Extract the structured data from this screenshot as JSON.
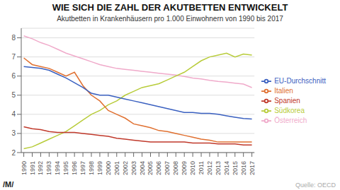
{
  "chart_data": {
    "type": "line",
    "title": "WIE SICH DIE ZAHL DER AKUTBETTEN ENTWICKELT",
    "subtitle": "Akutbetten in Krankenhäusern pro 1.000 Einwohnern von 1990 bis 2017",
    "annotations": [
      "Quelle: OECD",
      "/M/"
    ],
    "x": [
      1990,
      1991,
      1992,
      1993,
      1994,
      1995,
      1996,
      1997,
      1998,
      1999,
      2000,
      2001,
      2002,
      2003,
      2004,
      2005,
      2006,
      2007,
      2008,
      2009,
      2010,
      2011,
      2012,
      2013,
      2014,
      2015,
      2016,
      2017
    ],
    "series": [
      {
        "name": "Österreich",
        "color": "#f0aaca",
        "values": [
          8.1,
          7.95,
          7.75,
          7.6,
          7.4,
          7.2,
          7.05,
          6.9,
          6.75,
          6.6,
          6.5,
          6.4,
          6.35,
          6.3,
          6.25,
          6.2,
          6.15,
          6.1,
          6.05,
          5.98,
          5.9,
          5.85,
          5.78,
          5.72,
          5.68,
          5.63,
          5.58,
          5.4
        ]
      },
      {
        "name": "Südkorea",
        "color": "#b8cc3a",
        "values": [
          2.2,
          2.3,
          2.5,
          2.7,
          2.9,
          3.1,
          3.4,
          3.7,
          4.0,
          4.2,
          4.5,
          4.7,
          5.0,
          5.2,
          5.4,
          5.5,
          5.6,
          5.8,
          6.0,
          6.2,
          6.5,
          6.8,
          7.0,
          7.1,
          7.2,
          7.0,
          7.15,
          7.1
        ]
      },
      {
        "name": "Italien",
        "color": "#e07030",
        "values": [
          6.95,
          6.6,
          6.5,
          6.4,
          6.2,
          6.0,
          6.2,
          5.5,
          5.0,
          4.7,
          4.2,
          4.0,
          3.8,
          3.5,
          3.4,
          3.3,
          3.15,
          3.1,
          3.0,
          2.9,
          2.8,
          2.7,
          2.65,
          2.55,
          2.55,
          2.55,
          2.55,
          2.55
        ]
      },
      {
        "name": "Spanien",
        "color": "#c0392b",
        "values": [
          3.35,
          3.25,
          3.2,
          3.1,
          3.05,
          3.05,
          3.05,
          3.0,
          2.95,
          2.9,
          2.85,
          2.75,
          2.7,
          2.65,
          2.6,
          2.55,
          2.55,
          2.55,
          2.55,
          2.55,
          2.5,
          2.5,
          2.5,
          2.45,
          2.45,
          2.45,
          2.4,
          2.4
        ]
      },
      {
        "name": "EU-Durchschnitt",
        "color": "#3a60c0",
        "values": [
          6.5,
          6.45,
          6.4,
          6.3,
          6.1,
          5.9,
          5.65,
          5.4,
          5.1,
          5.0,
          5.0,
          4.9,
          4.8,
          4.7,
          4.6,
          4.5,
          4.4,
          4.3,
          4.2,
          4.1,
          4.1,
          4.05,
          4.05,
          4.0,
          3.92,
          3.85,
          3.78,
          3.75
        ]
      }
    ],
    "xlim": [
      1989.7,
      2017.3
    ],
    "xticks": [
      1990,
      1991,
      1992,
      1993,
      1994,
      1995,
      1996,
      1997,
      1998,
      1999,
      2000,
      2001,
      2002,
      2003,
      2004,
      2005,
      2006,
      2007,
      2008,
      2009,
      2010,
      2011,
      2012,
      2013,
      2014,
      2015,
      2016,
      2017
    ],
    "ylim": [
      2.0,
      8.5
    ],
    "yticks": [
      2,
      3,
      4,
      5,
      6,
      7,
      8
    ],
    "grid": "y",
    "legend": "right"
  }
}
